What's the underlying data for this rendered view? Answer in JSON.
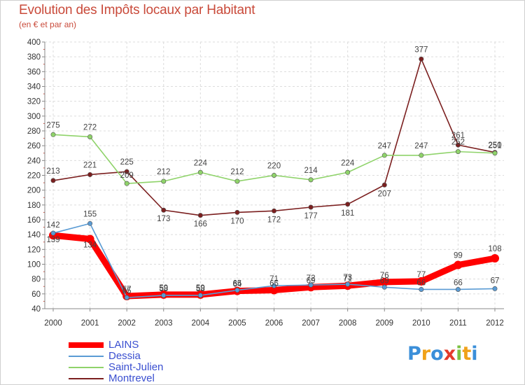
{
  "title": "Evolution des Impôts locaux par Habitant",
  "subtitle": "(en € et par an)",
  "logo": {
    "text": "Proxiti",
    "letters": [
      {
        "ch": "P",
        "color": "#3b8fd9"
      },
      {
        "ch": "r",
        "color": "#f0a21a"
      },
      {
        "ch": "o",
        "color": "#3b8fd9"
      },
      {
        "ch": "x",
        "color": "#e43b2b"
      },
      {
        "ch": "i",
        "color": "#7cc142"
      },
      {
        "ch": "t",
        "color": "#f0a21a"
      },
      {
        "ch": "i",
        "color": "#3b8fd9"
      }
    ]
  },
  "chart_data": {
    "type": "line",
    "title": "Evolution des Impôts locaux par Habitant",
    "ylabel": "(en € et par an)",
    "xlabel": "",
    "ylim": [
      40,
      400
    ],
    "yticks": [
      40,
      60,
      80,
      100,
      120,
      140,
      160,
      180,
      200,
      220,
      240,
      260,
      280,
      300,
      320,
      340,
      360,
      380,
      400
    ],
    "categories": [
      "2000",
      "2001",
      "2002",
      "2003",
      "2004",
      "2005",
      "2006",
      "2007",
      "2008",
      "2009",
      "2010",
      "2011",
      "2012"
    ],
    "grid": true,
    "legend_position": "bottom-left",
    "series": [
      {
        "name": "LAINS",
        "color": "#ff0000",
        "values": [
          139,
          134,
          57,
          59,
          59,
          64,
          65,
          69,
          71,
          76,
          77,
          99,
          108
        ],
        "labels": [
          "139",
          "134",
          "57",
          "59",
          "59",
          "64",
          "65",
          "69",
          "71",
          "76",
          "77",
          "99",
          "108"
        ]
      },
      {
        "name": "Dessia",
        "color": "#5a9bd4",
        "values": [
          142,
          155,
          55,
          58,
          58,
          65,
          71,
          72,
          73,
          69,
          66,
          66,
          67
        ],
        "labels": [
          "142",
          "155",
          "55",
          "58",
          "58",
          "65",
          "71",
          "72",
          "73",
          "69",
          "66",
          "66",
          "67"
        ]
      },
      {
        "name": "Saint-Julien",
        "color": "#8fd36a",
        "values": [
          275,
          272,
          209,
          212,
          224,
          212,
          220,
          214,
          224,
          247,
          247,
          252,
          250
        ],
        "labels": [
          "275",
          "272",
          "209",
          "212",
          "224",
          "212",
          "220",
          "214",
          "224",
          "247",
          "247",
          "252",
          "250"
        ]
      },
      {
        "name": "Montrevel",
        "color": "#7b1f1f",
        "values": [
          213,
          221,
          225,
          173,
          166,
          170,
          172,
          177,
          181,
          207,
          377,
          261,
          251
        ],
        "labels": [
          "213",
          "221",
          "225",
          "173",
          "166",
          "170",
          "172",
          "177",
          "181",
          "207",
          "377",
          "261",
          "251"
        ]
      }
    ]
  }
}
